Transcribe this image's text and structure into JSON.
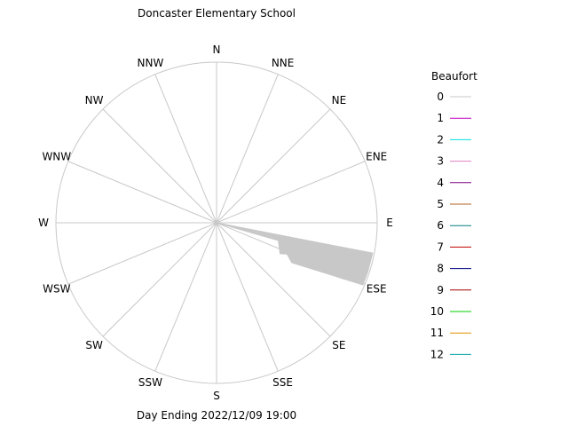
{
  "chart_data": {
    "type": "wind-rose",
    "title": "Doncaster Elementary School",
    "footer": "Day Ending 2022/12/09 19:00",
    "directions": [
      "N",
      "NNE",
      "NE",
      "ENE",
      "E",
      "ESE",
      "SE",
      "SSE",
      "S",
      "SSW",
      "SW",
      "WSW",
      "W",
      "WNW",
      "NW",
      "NNW"
    ],
    "r_max": 1.0,
    "grid": true,
    "legend": {
      "title": "Beaufort",
      "position": "right",
      "entries": [
        {
          "label": "0",
          "color": "#c8c8c8"
        },
        {
          "label": "1",
          "color": "#c000c0"
        },
        {
          "label": "2",
          "color": "#00e0e0"
        },
        {
          "label": "3",
          "color": "#e080c0"
        },
        {
          "label": "4",
          "color": "#800080"
        },
        {
          "label": "5",
          "color": "#b06020"
        },
        {
          "label": "6",
          "color": "#008080"
        },
        {
          "label": "7",
          "color": "#c00000"
        },
        {
          "label": "8",
          "color": "#000080"
        },
        {
          "label": "9",
          "color": "#a00000"
        },
        {
          "label": "10",
          "color": "#00d000"
        },
        {
          "label": "11",
          "color": "#e09000"
        },
        {
          "label": "12",
          "color": "#00a0a0"
        }
      ]
    },
    "series": [
      {
        "name": "0",
        "color": "#c8c8c8",
        "points": [
          {
            "direction_deg": 101,
            "value": 0.99
          },
          {
            "direction_deg": 108,
            "value": 0.99
          },
          {
            "direction_deg": 113,
            "value": 0.99
          },
          {
            "direction_deg": 118,
            "value": 0.53
          },
          {
            "direction_deg": 114,
            "value": 0.48
          },
          {
            "direction_deg": 116,
            "value": 0.44
          },
          {
            "direction_deg": 106,
            "value": 0.4
          }
        ]
      }
    ]
  }
}
